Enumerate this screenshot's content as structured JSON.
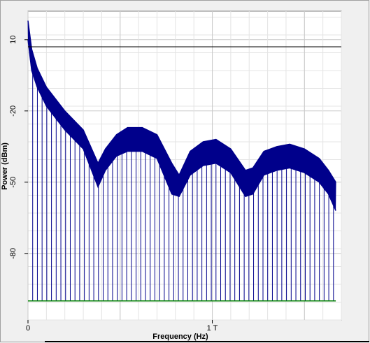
{
  "chart_data": {
    "type": "line",
    "xlabel": "Frequency (Hz)",
    "ylabel": "Power (dBm)",
    "xlim": [
      0,
      1.7
    ],
    "ylim": [
      -108,
      22
    ],
    "x_ticks": [
      {
        "value": 0,
        "label": "0"
      },
      {
        "value": 1.0,
        "label": "1 T"
      }
    ],
    "y_ticks": [
      {
        "value": 10,
        "label": "10"
      },
      {
        "value": -20,
        "label": "-20"
      },
      {
        "value": -50,
        "label": "-50"
      },
      {
        "value": -80,
        "label": "-80"
      }
    ],
    "grid": true,
    "reference_line_dbm": 7,
    "noise_floor_dbm": -100,
    "series": [
      {
        "color": "#00008b",
        "envelope_x": [
          0.0,
          0.02,
          0.05,
          0.1,
          0.2,
          0.3,
          0.38,
          0.42,
          0.48,
          0.54,
          0.62,
          0.7,
          0.78,
          0.82,
          0.88,
          0.95,
          1.02,
          1.1,
          1.18,
          1.22,
          1.28,
          1.35,
          1.42,
          1.5,
          1.58,
          1.63,
          1.67
        ],
        "envelope_top": [
          18,
          6,
          -2,
          -10,
          -20,
          -28,
          -42,
          -36,
          -30,
          -27,
          -27,
          -30,
          -42,
          -47,
          -37,
          -33,
          -32,
          -36,
          -45,
          -44,
          -37,
          -35,
          -34,
          -36,
          -40,
          -45,
          -50
        ],
        "envelope_bottom": [
          10,
          -3,
          -10,
          -18,
          -28,
          -36,
          -52,
          -45,
          -39,
          -37,
          -37,
          -40,
          -55,
          -56,
          -47,
          -43,
          -42,
          -46,
          -56,
          -55,
          -47,
          -45,
          -44,
          -46,
          -50,
          -55,
          -62
        ],
        "comb_spacing_hz": 0.0255,
        "comb_floor_dbm": -100
      },
      {
        "color": "#008000",
        "y": -100
      }
    ]
  }
}
